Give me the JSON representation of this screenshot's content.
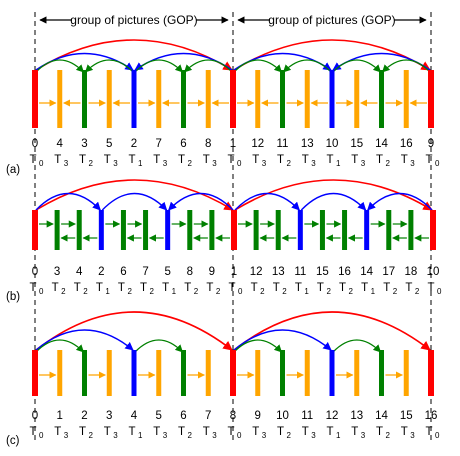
{
  "colors": {
    "T0": "#ff0000",
    "T1": "#0000ff",
    "T2": "#008000",
    "T3": "#ffa500",
    "text": "#000000"
  },
  "gop_labels": [
    "group of pictures (GOP)",
    "group of pictures (GOP)"
  ],
  "panels": [
    {
      "id": "a",
      "label": "(a)",
      "frames": [
        {
          "num": "0",
          "level": "T",
          "sub": "0"
        },
        {
          "num": "4",
          "level": "T",
          "sub": "3"
        },
        {
          "num": "3",
          "level": "T",
          "sub": "2"
        },
        {
          "num": "5",
          "level": "T",
          "sub": "3"
        },
        {
          "num": "2",
          "level": "T",
          "sub": "1"
        },
        {
          "num": "7",
          "level": "T",
          "sub": "3"
        },
        {
          "num": "6",
          "level": "T",
          "sub": "2"
        },
        {
          "num": "8",
          "level": "T",
          "sub": "3"
        },
        {
          "num": "1",
          "level": "T",
          "sub": "0"
        },
        {
          "num": "12",
          "level": "T",
          "sub": "3"
        },
        {
          "num": "11",
          "level": "T",
          "sub": "2"
        },
        {
          "num": "13",
          "level": "T",
          "sub": "3"
        },
        {
          "num": "10",
          "level": "T",
          "sub": "1"
        },
        {
          "num": "15",
          "level": "T",
          "sub": "3"
        },
        {
          "num": "14",
          "level": "T",
          "sub": "2"
        },
        {
          "num": "16",
          "level": "T",
          "sub": "3"
        },
        {
          "num": "9",
          "level": "T",
          "sub": "0"
        }
      ]
    },
    {
      "id": "b",
      "label": "(b)",
      "frames": [
        {
          "num": "0",
          "level": "T",
          "sub": "0"
        },
        {
          "num": "3",
          "level": "T",
          "sub": "2"
        },
        {
          "num": "4",
          "level": "T",
          "sub": "2"
        },
        {
          "num": "2",
          "level": "T",
          "sub": "1"
        },
        {
          "num": "6",
          "level": "T",
          "sub": "2"
        },
        {
          "num": "7",
          "level": "T",
          "sub": "2"
        },
        {
          "num": "5",
          "level": "T",
          "sub": "1"
        },
        {
          "num": "8",
          "level": "T",
          "sub": "2"
        },
        {
          "num": "9",
          "level": "T",
          "sub": "2"
        },
        {
          "num": "1",
          "level": "T",
          "sub": "0"
        },
        {
          "num": "12",
          "level": "T",
          "sub": "2"
        },
        {
          "num": "13",
          "level": "T",
          "sub": "2"
        },
        {
          "num": "11",
          "level": "T",
          "sub": "1"
        },
        {
          "num": "15",
          "level": "T",
          "sub": "2"
        },
        {
          "num": "16",
          "level": "T",
          "sub": "2"
        },
        {
          "num": "14",
          "level": "T",
          "sub": "1"
        },
        {
          "num": "17",
          "level": "T",
          "sub": "2"
        },
        {
          "num": "18",
          "level": "T",
          "sub": "2"
        },
        {
          "num": "10",
          "level": "T",
          "sub": "0"
        }
      ]
    },
    {
      "id": "c",
      "label": "(c)",
      "frames": [
        {
          "num": "0",
          "level": "T",
          "sub": "0"
        },
        {
          "num": "1",
          "level": "T",
          "sub": "3"
        },
        {
          "num": "2",
          "level": "T",
          "sub": "2"
        },
        {
          "num": "3",
          "level": "T",
          "sub": "3"
        },
        {
          "num": "4",
          "level": "T",
          "sub": "1"
        },
        {
          "num": "5",
          "level": "T",
          "sub": "3"
        },
        {
          "num": "6",
          "level": "T",
          "sub": "2"
        },
        {
          "num": "7",
          "level": "T",
          "sub": "3"
        },
        {
          "num": "8",
          "level": "T",
          "sub": "0"
        },
        {
          "num": "9",
          "level": "T",
          "sub": "3"
        },
        {
          "num": "10",
          "level": "T",
          "sub": "2"
        },
        {
          "num": "11",
          "level": "T",
          "sub": "3"
        },
        {
          "num": "12",
          "level": "T",
          "sub": "1"
        },
        {
          "num": "13",
          "level": "T",
          "sub": "3"
        },
        {
          "num": "14",
          "level": "T",
          "sub": "2"
        },
        {
          "num": "15",
          "level": "T",
          "sub": "3"
        },
        {
          "num": "16",
          "level": "T",
          "sub": "0"
        }
      ]
    }
  ]
}
